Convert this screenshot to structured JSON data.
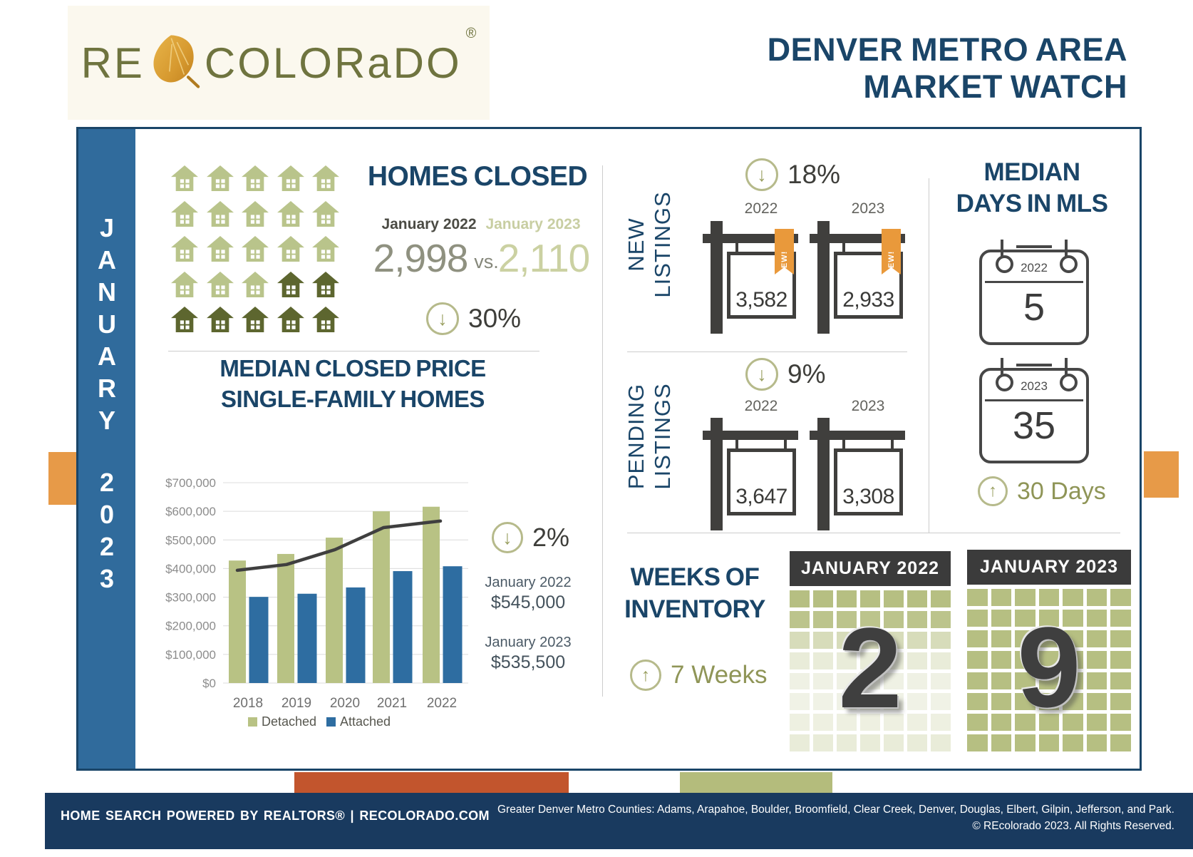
{
  "brand": {
    "re": "RE",
    "colorado": "COLORaDO",
    "registered_mark": "®"
  },
  "header": {
    "title_line1": "DENVER METRO AREA",
    "title_line2": "MARKET WATCH"
  },
  "sidebar": {
    "month": "JANUARY",
    "year": "2023"
  },
  "homes_closed": {
    "title": "HOMES CLOSED",
    "period1_label": "January 2022",
    "period2_label": "January 2023",
    "value_2022": "2,998",
    "vs_label": "vs.",
    "value_2023": "2,110",
    "change": "30%",
    "change_direction": "down",
    "down_arrow": "↓",
    "houses_grid": {
      "rows": 5,
      "cols": 5,
      "light_count": 18,
      "dark_count": 7,
      "light_color": "#b9c48b",
      "dark_color": "#5d662f"
    }
  },
  "median_price": {
    "title_line1": "MEDIAN CLOSED PRICE",
    "title_line2": "SINGLE-FAMILY HOMES",
    "change": "2%",
    "change_direction": "down",
    "down_arrow": "↓",
    "period1_label": "January 2022",
    "period1_value": "$545,000",
    "period2_label": "January 2023",
    "period2_value": "$535,500"
  },
  "chart_data": {
    "type": "bar",
    "title": "MEDIAN CLOSED PRICE SINGLE-FAMILY HOMES",
    "categories": [
      "2018",
      "2019",
      "2020",
      "2021",
      "2022"
    ],
    "series": [
      {
        "name": "Detached",
        "color": "#b8c284",
        "values": [
          428000,
          451000,
          508000,
          600000,
          616000
        ]
      },
      {
        "name": "Attached",
        "color": "#2e6da1",
        "values": [
          301000,
          312000,
          334000,
          391000,
          408000
        ]
      }
    ],
    "line_overlay": {
      "name": "median-trend-line",
      "color": "#3f3f3f",
      "values": [
        394000,
        414000,
        466000,
        543000,
        566000
      ]
    },
    "xlabel": "",
    "ylabel": "",
    "ylim": [
      0,
      700000
    ],
    "ytick_step": 100000,
    "ytick_labels": [
      "$0",
      "$100,000",
      "$200,000",
      "$300,000",
      "$400,000",
      "$500,000",
      "$600,000",
      "$700,000"
    ],
    "grid": true,
    "legend_position": "bottom"
  },
  "new_listings": {
    "label_line1": "NEW",
    "label_line2": "LISTINGS",
    "change": "18%",
    "change_direction": "down",
    "down_arrow": "↓",
    "year1": "2022",
    "value1": "3,582",
    "year2": "2023",
    "value2": "2,933",
    "ribbon_label": "NEW!"
  },
  "pending_listings": {
    "label_line1": "PENDING",
    "label_line2": "LISTINGS",
    "change": "9%",
    "change_direction": "down",
    "down_arrow": "↓",
    "year1": "2022",
    "value1": "3,647",
    "year2": "2023",
    "value2": "3,308"
  },
  "median_days": {
    "title_line1": "MEDIAN",
    "title_line2": "DAYS IN MLS",
    "cal1_year": "2022",
    "cal1_value": "5",
    "cal2_year": "2023",
    "cal2_value": "35",
    "change": "30 Days",
    "change_direction": "up",
    "up_arrow": "↑"
  },
  "weeks_inventory": {
    "title_line1": "WEEKS OF",
    "title_line2": "INVENTORY",
    "change": "7 Weeks",
    "change_direction": "up",
    "up_arrow": "↑",
    "cal1_header": "JANUARY 2022",
    "cal1_value": "2",
    "cal2_header": "JANUARY 2023",
    "cal2_value": "9",
    "grid_cols": 7,
    "grid_rows": 8,
    "fade_2022_row_opacity": [
      1,
      0.92,
      0.55,
      0.3,
      0.22,
      0.2,
      0.24,
      0.3
    ],
    "square_color": "#b6bf82"
  },
  "footer": {
    "left_text": "HOME SEARCH POWERED BY REALTORS®  |  RECOLORADO.COM",
    "right_line1": "Greater Denver Metro Counties: Adams, Arapahoe, Boulder, Broomfield, Clear Creek, Denver, Douglas, Elbert, Gilpin, Jefferson, and Park.",
    "right_line2": "© REcolorado 2023. All Rights Reserved."
  },
  "colors": {
    "navy": "#1a4568",
    "sidebar_blue": "#306b9c",
    "bar_blue": "#2e6da1",
    "olive_light": "#b9c48b",
    "olive_dark": "#5d662f",
    "olive_accent": "#8f9557",
    "charcoal": "#3f3f3f",
    "ribbon_orange": "#e9993b",
    "tab_orange": "#e79a48",
    "brick": "#c2552d",
    "footer_navy": "#193a5f",
    "decor_green": "#b4bc7c"
  }
}
